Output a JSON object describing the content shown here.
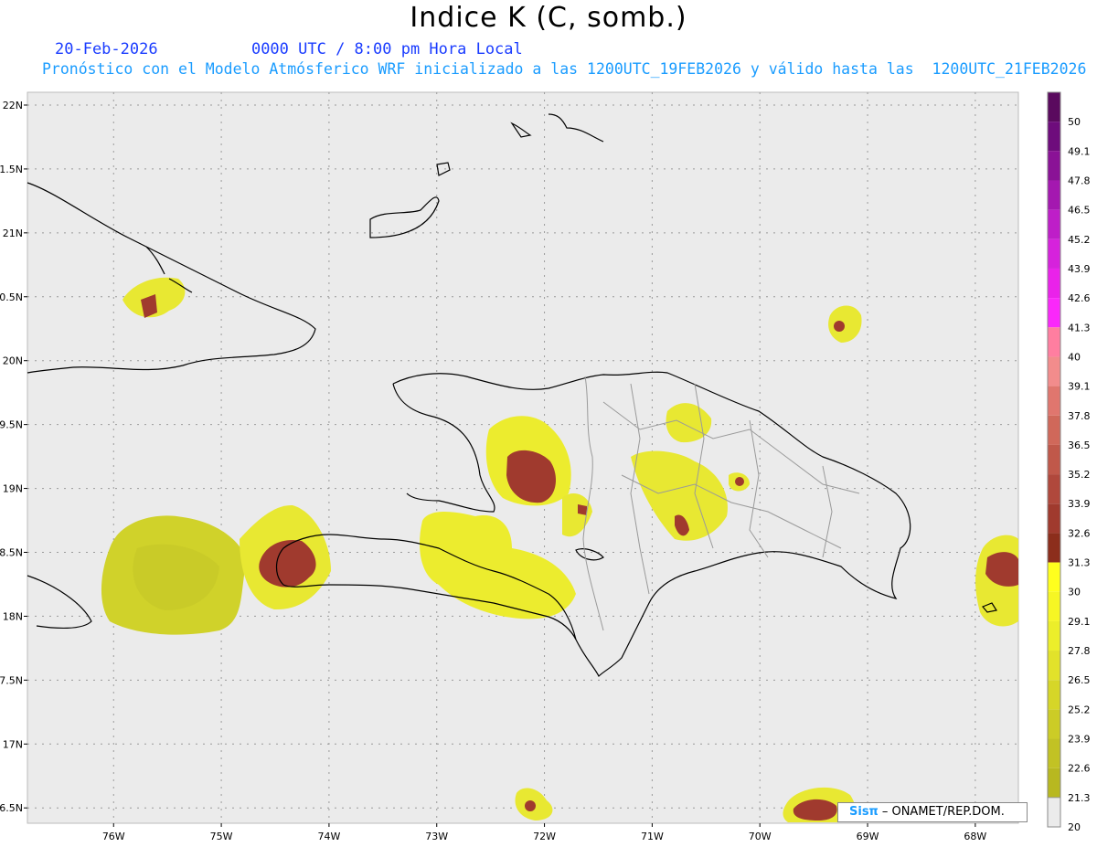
{
  "title": "Indice K (C, somb.)",
  "date": "20-Feb-2026",
  "time_label": "0000 UTC / 8:00 pm Hora Local",
  "forecast_line": "Pronóstico con el Modelo Atmósferico WRF inicializado a las 1200UTC_19FEB2026 y válido hasta las  1200UTC_21FEB2026",
  "credit": {
    "brand": "Sisπ",
    "org": "– ONAMET/REP.DOM."
  },
  "map": {
    "lon_range": [
      -76.8,
      -67.6
    ],
    "lat_range": [
      16.38,
      22.1
    ],
    "lon_ticks": [
      "76W",
      "75W",
      "74W",
      "73W",
      "72W",
      "71W",
      "70W",
      "69W",
      "68W"
    ],
    "lat_ticks": [
      "22N",
      "1.5N",
      "21N",
      "0.5N",
      "20N",
      "9.5N",
      "19N",
      "8.5N",
      "18N",
      "7.5N",
      "17N",
      "6.5N"
    ]
  },
  "colorbar": {
    "labels": [
      "50",
      "49.1",
      "47.8",
      "46.5",
      "45.2",
      "43.9",
      "42.6",
      "41.3",
      "40",
      "39.1",
      "37.8",
      "36.5",
      "35.2",
      "33.9",
      "32.6",
      "31.3",
      "30",
      "29.1",
      "27.8",
      "26.5",
      "25.2",
      "23.9",
      "22.6",
      "21.3",
      "20"
    ],
    "colors": [
      "#5a0a5e",
      "#6e0c7c",
      "#8a1296",
      "#a418b0",
      "#be1ec8",
      "#d622dc",
      "#ea22ea",
      "#fa28fa",
      "#ff7ea0",
      "#f28c8c",
      "#e0766e",
      "#d0685a",
      "#c0584a",
      "#b0483c",
      "#a03a2e",
      "#8c2e1c",
      "#ffff1e",
      "#f6f624",
      "#ecee2a",
      "#e2e22a",
      "#d6d628",
      "#cccc26",
      "#c2c224",
      "#b8b820"
    ]
  }
}
